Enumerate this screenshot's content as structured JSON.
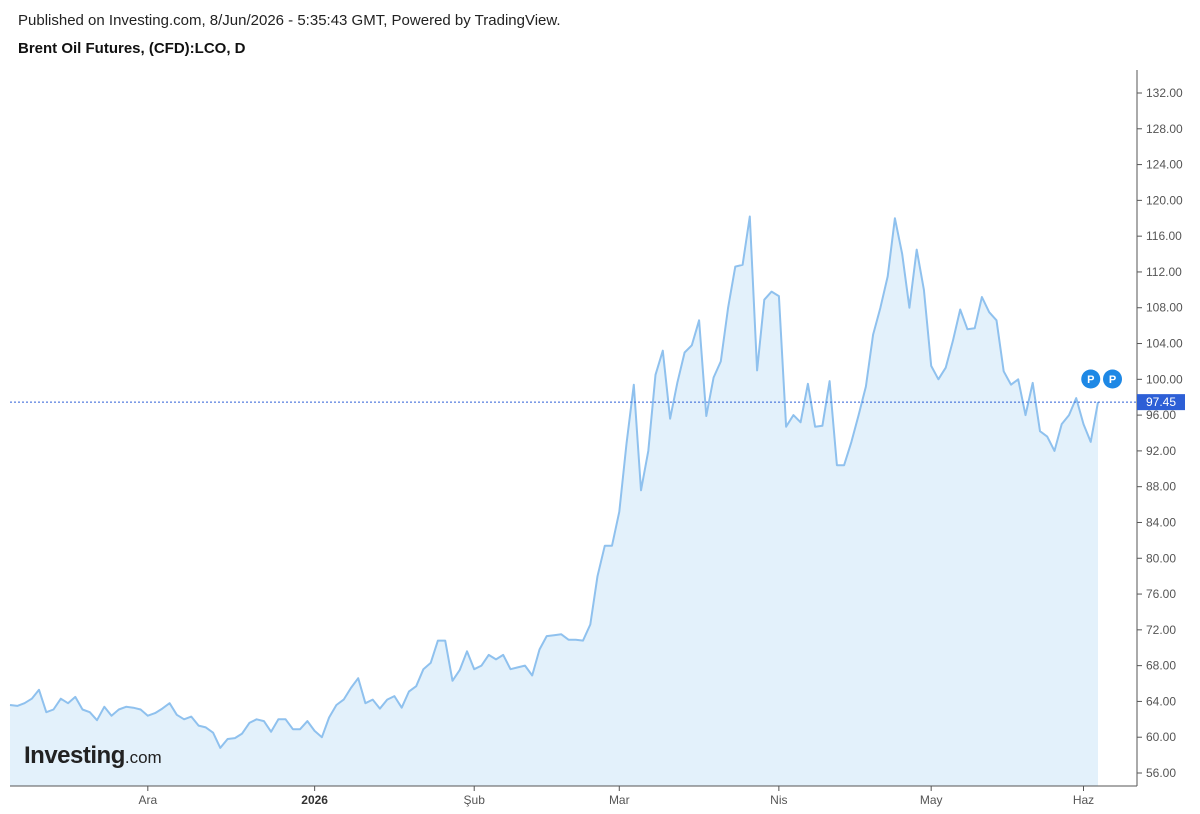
{
  "header": {
    "published": "Published on Investing.com, 8/Jun/2026 - 5:35:43 GMT, Powered by TradingView.",
    "symbol": "Brent Oil Futures, (CFD):LCO, D"
  },
  "logo": {
    "main": "Investing",
    "suffix": ".com"
  },
  "chart_data": {
    "type": "area",
    "title": "Brent Oil Futures, (CFD):LCO, D",
    "ylim": [
      55,
      134
    ],
    "y_ticks": [
      "132.00",
      "128.00",
      "124.00",
      "120.00",
      "116.00",
      "112.00",
      "108.00",
      "104.00",
      "100.00",
      "96.00",
      "92.00",
      "88.00",
      "84.00",
      "80.00",
      "76.00",
      "72.00",
      "68.00",
      "64.00",
      "60.00",
      "56.00"
    ],
    "x_ticks": [
      {
        "label": "Ara",
        "index": 19,
        "bold": false
      },
      {
        "label": "2026",
        "index": 42,
        "bold": true
      },
      {
        "label": "Şub",
        "index": 64,
        "bold": false
      },
      {
        "label": "Mar",
        "index": 84,
        "bold": false
      },
      {
        "label": "Nis",
        "index": 106,
        "bold": false
      },
      {
        "label": "May",
        "index": 127,
        "bold": false
      },
      {
        "label": "Haz",
        "index": 148,
        "bold": false
      }
    ],
    "last_price": 97.45,
    "last_price_label": "97.45",
    "markers": [
      {
        "label": "P",
        "index": 149
      },
      {
        "label": "P",
        "index": 152
      }
    ],
    "colors": {
      "line": "#8fc1ee",
      "fill": "#e3f1fb",
      "last_price": "#2d5fd6",
      "marker": "#1e88e5"
    },
    "series": [
      {
        "values": [
          63.6,
          63.5,
          63.8,
          64.3,
          65.3,
          62.8,
          63.1,
          64.3,
          63.8,
          64.5,
          63.1,
          62.8,
          61.9,
          63.4,
          62.4,
          63.1,
          63.4,
          63.3,
          63.1,
          62.4,
          62.7,
          63.2,
          63.8,
          62.5,
          62.0,
          62.3,
          61.3,
          61.1,
          60.5,
          58.8,
          59.8,
          59.9,
          60.4,
          61.6,
          62.0,
          61.8,
          60.6,
          62.0,
          62.0,
          60.9,
          60.9,
          61.8,
          60.7,
          60.0,
          62.2,
          63.6,
          64.2,
          65.5,
          66.6,
          63.8,
          64.2,
          63.2,
          64.2,
          64.6,
          63.3,
          65.1,
          65.7,
          67.6,
          68.3,
          70.8,
          70.8,
          66.3,
          67.5,
          69.6,
          67.6,
          68.0,
          69.2,
          68.7,
          69.2,
          67.6,
          67.8,
          68.0,
          66.9,
          69.8,
          71.3,
          71.4,
          71.5,
          70.9,
          70.9,
          70.8,
          72.6,
          78.0,
          81.4,
          81.4,
          85.2,
          92.8,
          99.4,
          87.6,
          92.0,
          100.5,
          103.2,
          95.6,
          99.6,
          103.0,
          103.8,
          106.6,
          95.9,
          100.2,
          102.0,
          108.0,
          112.6,
          112.8,
          118.2,
          101.0,
          108.9,
          109.8,
          109.3,
          94.7,
          96.0,
          95.2,
          99.5,
          94.7,
          94.8,
          99.8,
          90.4,
          90.4,
          93.0,
          96.0,
          99.2,
          105.0,
          108.0,
          111.5,
          118.0,
          114.0,
          108.0,
          114.5,
          110.0,
          101.5,
          100.0,
          101.3,
          104.3,
          107.8,
          105.6,
          105.7,
          109.2,
          107.5,
          106.6,
          100.9,
          99.4,
          100.0,
          96.0,
          99.6,
          94.2,
          93.6,
          92.0,
          95.0,
          96.0,
          97.9,
          95.0,
          93.0,
          97.45
        ]
      }
    ]
  }
}
